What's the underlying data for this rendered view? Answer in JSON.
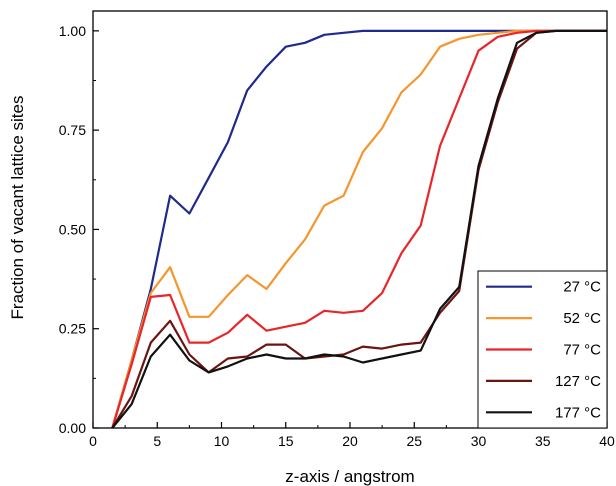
{
  "chart_data": {
    "type": "line",
    "xlabel": "z-axis / angstrom",
    "ylabel": "Fraction of vacant lattice sites",
    "xlim": [
      0,
      40
    ],
    "ylim": [
      0,
      1.05
    ],
    "xticks": [
      0,
      5,
      10,
      15,
      20,
      25,
      30,
      35,
      40
    ],
    "xtick_labels": [
      "0",
      "5",
      "10",
      "15",
      "20",
      "25",
      "30",
      "35",
      "40"
    ],
    "yticks": [
      0,
      0.25,
      0.5,
      0.75,
      1.0
    ],
    "ytick_labels": [
      "0.00",
      "0.25",
      "0.50",
      "0.75",
      "1.00"
    ],
    "grid": false,
    "legend_position": "bottom-right",
    "series": [
      {
        "name": "27 °C",
        "color": "#1f2a8c",
        "x": [
          1.5,
          3,
          4.5,
          6,
          7.5,
          9,
          10.5,
          12,
          13.5,
          15,
          16.5,
          18,
          19.5,
          21,
          22.5,
          24,
          25.5,
          27,
          28.5,
          30,
          31.5,
          33,
          34.5,
          36,
          37.5,
          39,
          40
        ],
        "y": [
          0,
          0.17,
          0.35,
          0.585,
          0.54,
          0.63,
          0.72,
          0.85,
          0.91,
          0.96,
          0.97,
          0.99,
          0.995,
          1.0,
          1.0,
          1.0,
          1.0,
          1.0,
          1.0,
          1.0,
          1.0,
          1.0,
          1.0,
          1.0,
          1.0,
          1.0,
          1.0
        ]
      },
      {
        "name": "52 °C",
        "color": "#f5962e",
        "x": [
          1.5,
          3,
          4.5,
          6,
          7.5,
          9,
          10.5,
          12,
          13.5,
          15,
          16.5,
          18,
          19.5,
          21,
          22.5,
          24,
          25.5,
          27,
          28.5,
          30,
          31.5,
          33,
          34.5,
          36,
          37.5,
          39,
          40
        ],
        "y": [
          0,
          0.17,
          0.34,
          0.405,
          0.28,
          0.28,
          0.335,
          0.385,
          0.35,
          0.415,
          0.475,
          0.56,
          0.585,
          0.695,
          0.755,
          0.845,
          0.89,
          0.96,
          0.98,
          0.99,
          0.995,
          1.0,
          1.0,
          1.0,
          1.0,
          1.0,
          1.0
        ]
      },
      {
        "name": "77 °C",
        "color": "#e8262a",
        "x": [
          1.5,
          3,
          4.5,
          6,
          7.5,
          9,
          10.5,
          12,
          13.5,
          15,
          16.5,
          18,
          19.5,
          21,
          22.5,
          24,
          25.5,
          27,
          28.5,
          30,
          31.5,
          33,
          34.5,
          36,
          37.5,
          39,
          40
        ],
        "y": [
          0,
          0.16,
          0.33,
          0.335,
          0.215,
          0.215,
          0.24,
          0.285,
          0.245,
          0.255,
          0.265,
          0.295,
          0.29,
          0.295,
          0.34,
          0.44,
          0.51,
          0.71,
          0.83,
          0.95,
          0.985,
          0.995,
          1.0,
          1.0,
          1.0,
          1.0,
          1.0
        ]
      },
      {
        "name": "127 °C",
        "color": "#6b1410",
        "x": [
          1.5,
          3,
          4.5,
          6,
          7.5,
          9,
          10.5,
          12,
          13.5,
          15,
          16.5,
          18,
          19.5,
          21,
          22.5,
          24,
          25.5,
          27,
          28.5,
          30,
          31.5,
          33,
          34.5,
          36,
          37.5,
          39,
          40
        ],
        "y": [
          0,
          0.08,
          0.215,
          0.27,
          0.185,
          0.14,
          0.175,
          0.18,
          0.21,
          0.21,
          0.175,
          0.18,
          0.185,
          0.205,
          0.2,
          0.21,
          0.215,
          0.29,
          0.345,
          0.65,
          0.82,
          0.955,
          0.995,
          1.0,
          1.0,
          1.0,
          1.0
        ]
      },
      {
        "name": "177 °C",
        "color": "#111111",
        "x": [
          1.5,
          3,
          4.5,
          6,
          7.5,
          9,
          10.5,
          12,
          13.5,
          15,
          16.5,
          18,
          19.5,
          21,
          22.5,
          24,
          25.5,
          27,
          28.5,
          30,
          31.5,
          33,
          34.5,
          36,
          37.5,
          39,
          40
        ],
        "y": [
          0,
          0.06,
          0.18,
          0.235,
          0.17,
          0.14,
          0.155,
          0.175,
          0.185,
          0.175,
          0.175,
          0.185,
          0.18,
          0.165,
          0.175,
          0.185,
          0.195,
          0.3,
          0.355,
          0.66,
          0.83,
          0.97,
          0.995,
          1.0,
          1.0,
          1.0,
          1.0
        ]
      }
    ]
  }
}
